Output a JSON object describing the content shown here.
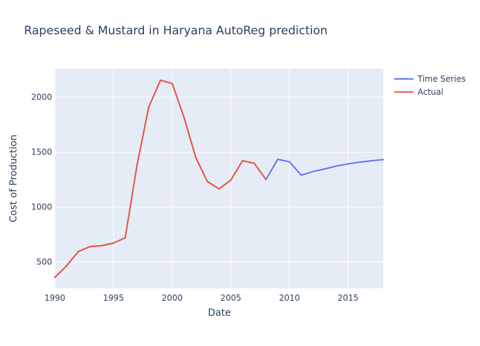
{
  "chart_data": {
    "type": "line",
    "title": "Rapeseed & Mustard in Haryana AutoReg prediction",
    "xlabel": "Date",
    "ylabel": "Cost of Production",
    "xlim": [
      1990,
      2018
    ],
    "ylim": [
      260,
      2260
    ],
    "x_ticks": [
      1990,
      1995,
      2000,
      2005,
      2010,
      2015
    ],
    "x_tick_labels": [
      "1990",
      "1995",
      "2000",
      "2005",
      "2010",
      "2015"
    ],
    "y_ticks": [
      500,
      1000,
      1500,
      2000
    ],
    "y_tick_labels": [
      "500",
      "1000",
      "1500",
      "2000"
    ],
    "grid": true,
    "legend_position": "top-right",
    "series": [
      {
        "name": "Time Series",
        "color": "#636efa",
        "x": [
          1990,
          1991,
          1992,
          1993,
          1994,
          1995,
          1996,
          1997,
          1998,
          1999,
          2000,
          2001,
          2002,
          2003,
          2004,
          2005,
          2006,
          2007,
          2008,
          2009,
          2010,
          2011,
          2012,
          2013,
          2014,
          2015,
          2016,
          2017,
          2018
        ],
        "values": [
          360,
          465,
          595,
          640,
          648,
          672,
          720,
          1380,
          1910,
          2155,
          2125,
          1820,
          1455,
          1232,
          1165,
          1245,
          1422,
          1398,
          1250,
          1435,
          1412,
          1290,
          1323,
          1347,
          1373,
          1393,
          1408,
          1422,
          1432
        ]
      },
      {
        "name": "Actual",
        "color": "#ef553b",
        "x": [
          1990,
          1991,
          1992,
          1993,
          1994,
          1995,
          1996,
          1997,
          1998,
          1999,
          2000,
          2001,
          2002,
          2003,
          2004,
          2005,
          2006,
          2007,
          2008
        ],
        "values": [
          360,
          465,
          595,
          640,
          648,
          672,
          720,
          1380,
          1910,
          2155,
          2125,
          1820,
          1455,
          1232,
          1165,
          1245,
          1422,
          1398,
          1250
        ]
      }
    ]
  }
}
